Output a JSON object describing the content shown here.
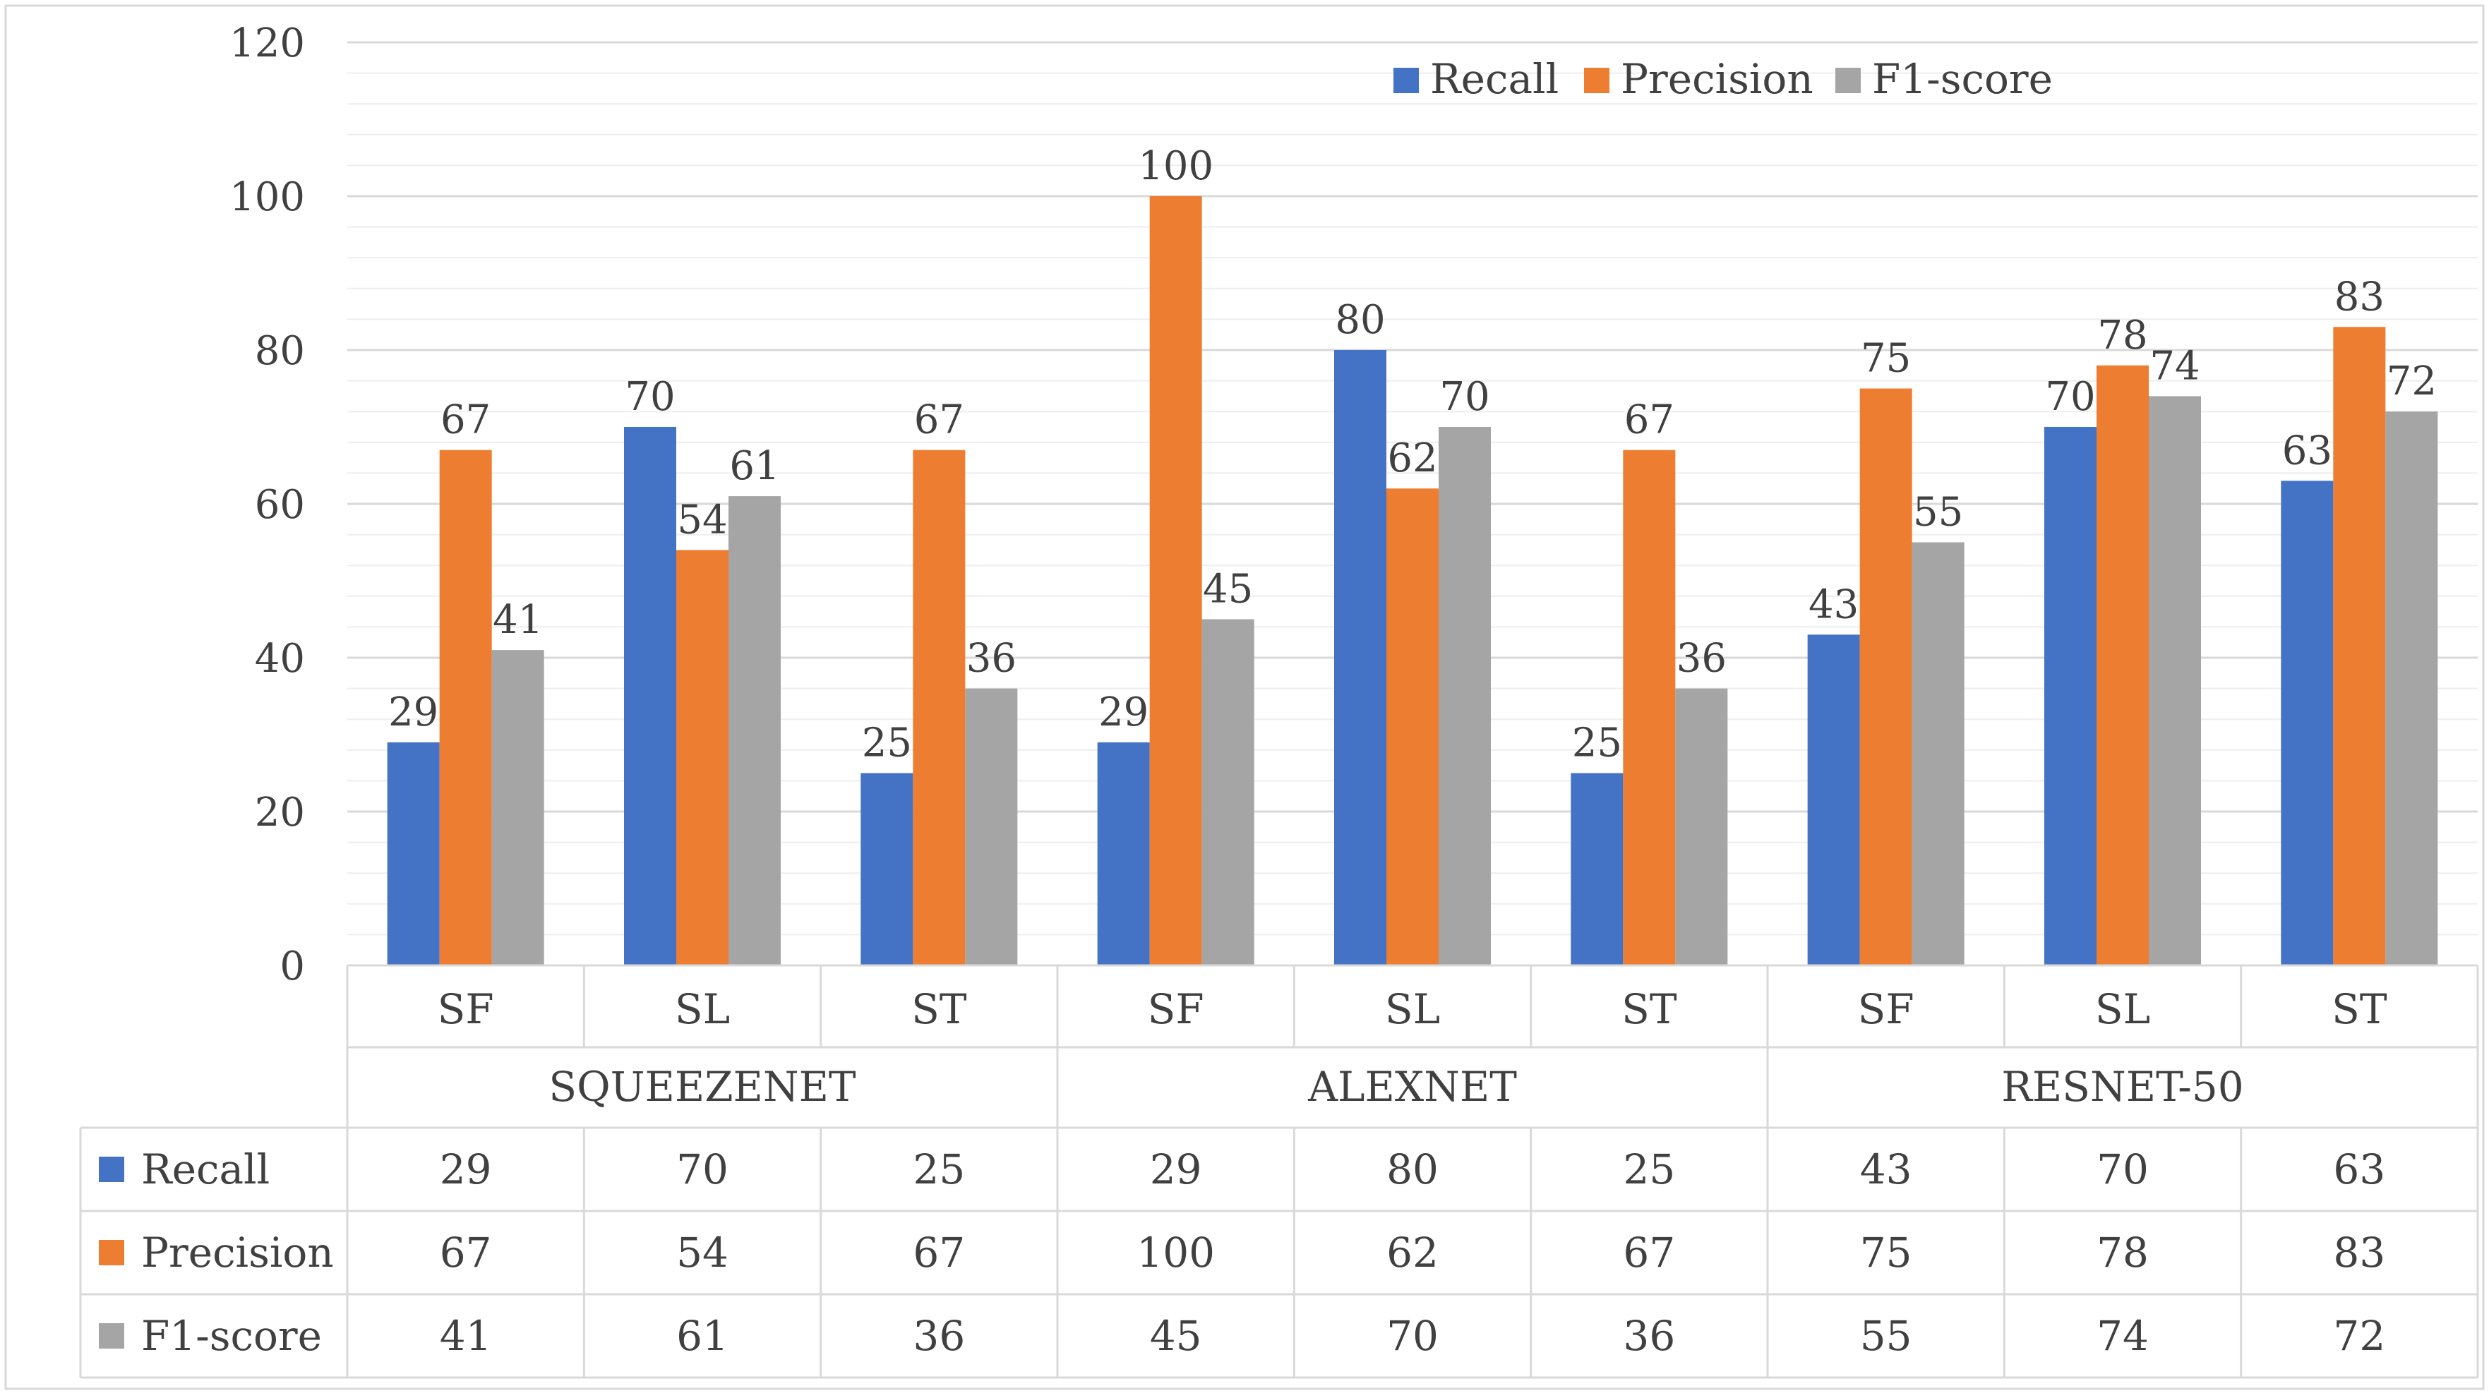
{
  "chart_data": {
    "type": "bar",
    "title": "",
    "xlabel": "",
    "ylabel": "",
    "ylim": [
      0,
      120
    ],
    "yticks": [
      0,
      20,
      40,
      60,
      80,
      100,
      120
    ],
    "grid": true,
    "legend": "top-right",
    "data_table": true,
    "groups": [
      {
        "name": "SQUEEZENET",
        "categories": [
          "SF",
          "SL",
          "ST"
        ]
      },
      {
        "name": "ALEXNET",
        "categories": [
          "SF",
          "SL",
          "ST"
        ]
      },
      {
        "name": "RESNET-50",
        "categories": [
          "SF",
          "SL",
          "ST"
        ]
      }
    ],
    "categories": [
      "SF",
      "SL",
      "ST",
      "SF",
      "SL",
      "ST",
      "SF",
      "SL",
      "ST"
    ],
    "series": [
      {
        "name": "Recall",
        "color": "#4472C4",
        "values": [
          29,
          70,
          25,
          29,
          80,
          25,
          43,
          70,
          63
        ]
      },
      {
        "name": "Precision",
        "color": "#ED7D31",
        "values": [
          67,
          54,
          67,
          100,
          62,
          67,
          75,
          78,
          83
        ]
      },
      {
        "name": "F1-score",
        "color": "#A5A5A5",
        "values": [
          41,
          61,
          36,
          45,
          70,
          36,
          55,
          74,
          72
        ]
      }
    ]
  }
}
